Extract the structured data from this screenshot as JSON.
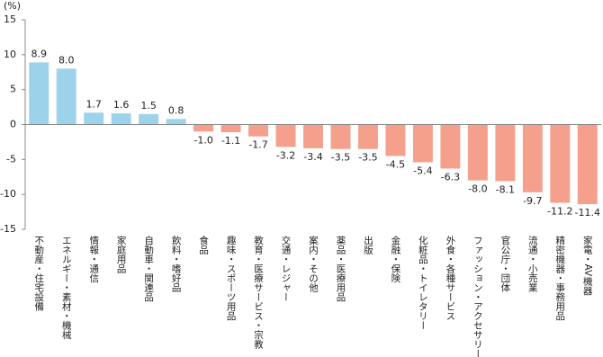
{
  "chart_data": {
    "type": "bar",
    "y_label": "(%)",
    "categories": [
      "不動産・住宅設備",
      "エネルギー・素材・機械",
      "情報・通信",
      "家庭用品",
      "自動車・関連品",
      "飲料・嗜好品",
      "食品",
      "趣味・スポーツ用品",
      "教育・医療サービス・宗教",
      "交通・レジャー",
      "案内・その他",
      "薬品・医療用品",
      "出版",
      "金融・保険",
      "化粧品・トイレタリー",
      "外食・各種サービス",
      "ファッション・アクセサリー",
      "官公庁・団体",
      "流通・小売業",
      "精密機器・事務用品",
      "家電・AV機器"
    ],
    "values": [
      8.9,
      8.0,
      1.7,
      1.6,
      1.5,
      0.8,
      -1.0,
      -1.1,
      -1.7,
      -3.2,
      -3.4,
      -3.5,
      -3.5,
      -4.5,
      -5.4,
      -6.3,
      -8.0,
      -8.1,
      -9.7,
      -11.2,
      -11.4
    ],
    "value_labels": [
      "8.9",
      "8.0",
      "1.7",
      "1.6",
      "1.5",
      "0.8",
      "-1.0",
      "-1.1",
      "-1.7",
      "-3.2",
      "-3.4",
      "-3.5",
      "-3.5",
      "-4.5",
      "-5.4",
      "-6.3",
      "-8.0",
      "-8.1",
      "-9.7",
      "-11.2",
      "-11.4"
    ],
    "positive_color": "#9dd3ea",
    "negative_color": "#f4a08c",
    "ylim": [
      -15,
      15
    ],
    "yticks": [
      -15,
      -10,
      -5,
      0,
      5,
      10,
      15
    ],
    "grid": false
  }
}
